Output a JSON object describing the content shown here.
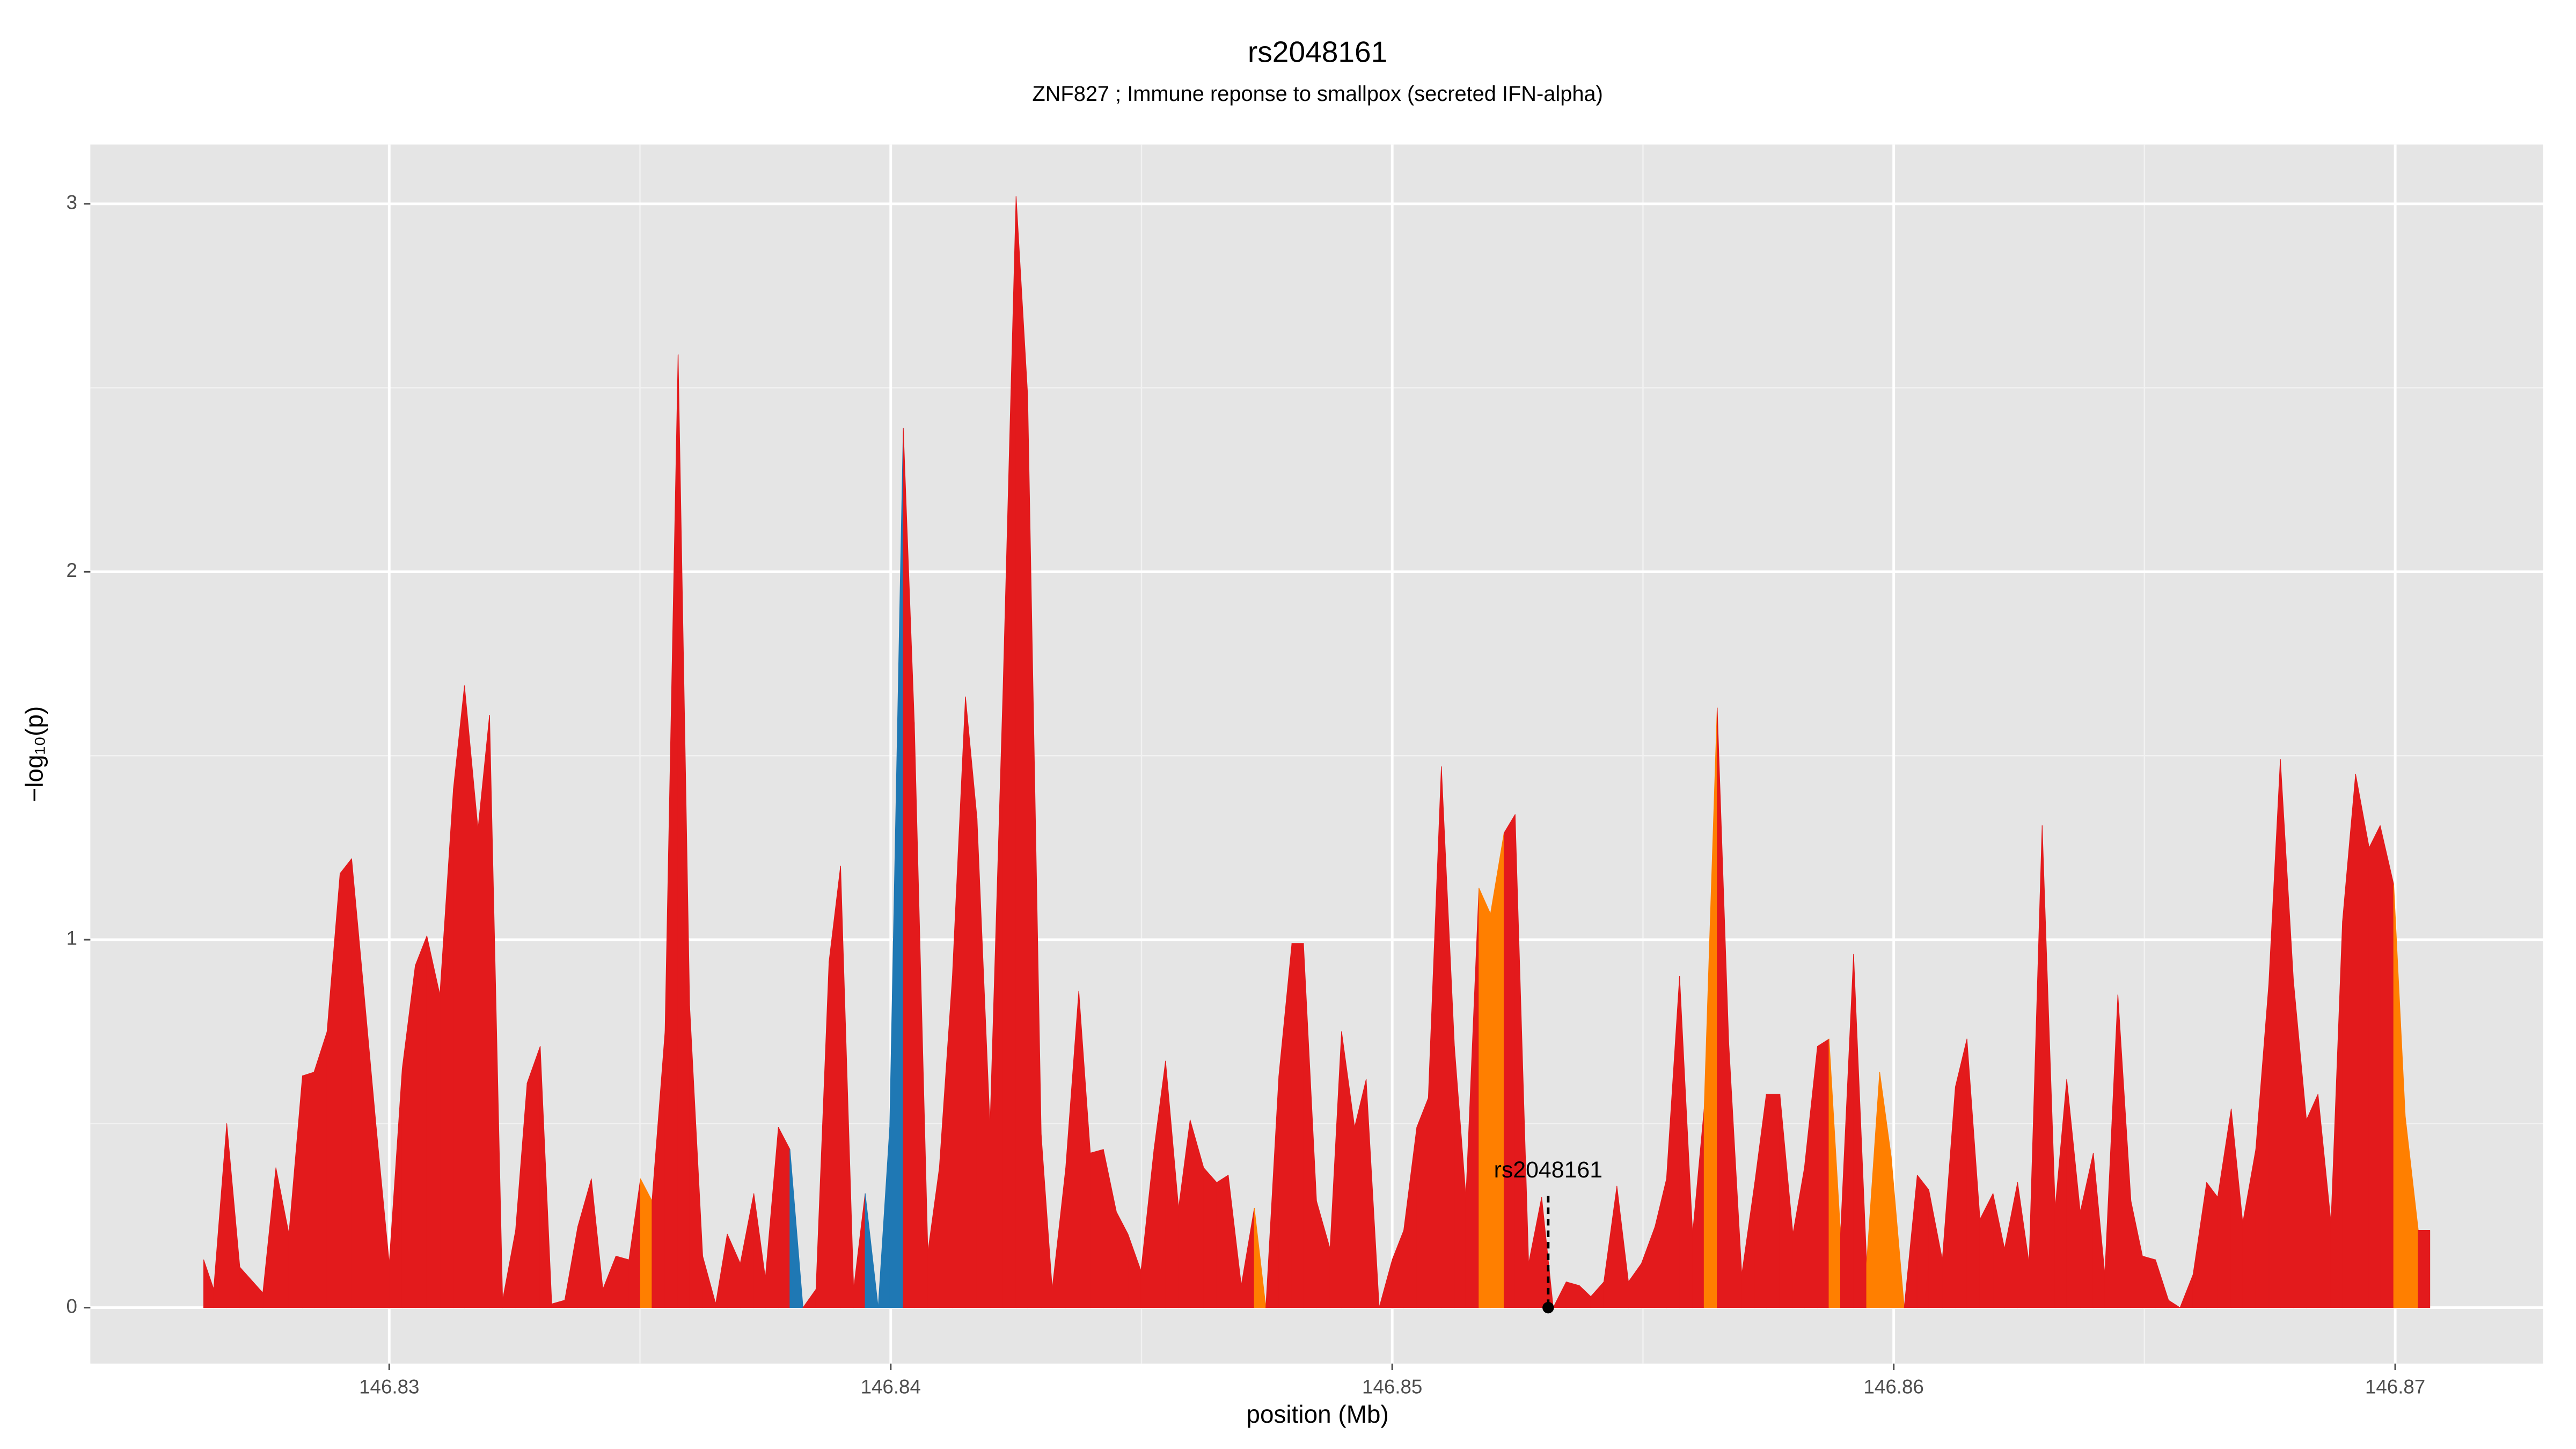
{
  "chart_data": {
    "type": "area",
    "title": "rs2048161",
    "subtitle": "ZNF827 ; Immune reponse to smallpox (secreted IFN-alpha)",
    "xlabel": "position (Mb)",
    "ylabel": "−log₁₀(p)",
    "xlim": [
      146.82404,
      146.87295
    ],
    "ylim": [
      -0.152,
      3.161
    ],
    "xticks": [
      146.83,
      146.84,
      146.85,
      146.86,
      146.87
    ],
    "yticks": [
      0,
      1,
      2,
      3
    ],
    "grid": true,
    "minor_grid": true,
    "annotation": {
      "text": "rs2048161",
      "x": 146.85311,
      "y": 0
    },
    "series": [
      {
        "x": [
          146.8263,
          146.8265,
          146.82676,
          146.82702,
          146.82748,
          146.82774,
          146.828,
          146.82827,
          146.8285,
          146.82876,
          146.82902,
          146.82925,
          146.82948,
          146.82974,
          146.83,
          146.83026,
          146.83052,
          146.83075,
          146.83101,
          146.83128,
          146.8315,
          146.83177,
          146.832,
          146.83226,
          146.83252,
          146.83275,
          146.83301,
          146.83324,
          146.8335,
          146.83376,
          146.83403,
          146.83426,
          146.83452,
          146.83478,
          146.83501,
          146.83524,
          146.8355,
          146.83576,
          146.83599,
          146.83625,
          146.83651,
          146.83674,
          146.837,
          146.83727,
          146.8375,
          146.83776,
          146.83799,
          146.83825,
          146.83851,
          146.83877,
          146.839,
          146.83926,
          146.83949,
          146.83975,
          146.83998,
          146.84025,
          146.84047,
          146.84074,
          146.84097,
          146.84123,
          146.84149,
          146.84172,
          146.84198,
          146.84224,
          146.8425,
          146.84273,
          146.843,
          146.84322,
          146.84349,
          146.84375,
          146.84398,
          146.84424,
          146.8445,
          146.84473,
          146.84499,
          146.84525,
          146.84548,
          146.84574,
          146.84597,
          146.84624,
          146.8465,
          146.84673,
          146.84699,
          146.84725,
          146.84748,
          146.84774,
          146.848,
          146.84823,
          146.84849,
          146.84876,
          146.84899,
          146.84925,
          146.84948,
          146.84974,
          146.85,
          146.85023,
          146.85049,
          146.85072,
          146.85098,
          146.85124,
          146.85147,
          146.85173,
          146.85196,
          146.85223,
          146.85245,
          146.85272,
          146.85298,
          146.85321,
          146.85347,
          146.85373,
          146.85396,
          146.85422,
          146.85448,
          146.85471,
          146.85497,
          146.85524,
          146.85547,
          146.85573,
          146.85599,
          146.85622,
          146.85648,
          146.85671,
          146.85697,
          146.85723,
          146.85746,
          146.85773,
          146.85799,
          146.85822,
          146.85848,
          146.85871,
          146.85894,
          146.8592,
          146.85946,
          146.85972,
          146.85995,
          146.86021,
          146.86047,
          146.8607,
          146.86097,
          146.86123,
          146.86146,
          146.86172,
          146.86198,
          146.86221,
          146.86247,
          146.8627,
          146.86296,
          146.86322,
          146.86345,
          146.86372,
          146.86398,
          146.86421,
          146.86447,
          146.86473,
          146.86496,
          146.86522,
          146.86548,
          146.86571,
          146.86597,
          146.86624,
          146.86646,
          146.86673,
          146.86696,
          146.86722,
          146.86748,
          146.86771,
          146.86797,
          146.86823,
          146.86846,
          146.86872,
          146.86895,
          146.86921,
          146.86948,
          146.8697,
          146.86997,
          146.8702,
          146.87046,
          146.87069
        ],
        "values": [
          0.13,
          0.05,
          0.5,
          0.11,
          0.04,
          0.38,
          0.2,
          0.63,
          0.64,
          0.75,
          1.18,
          1.22,
          0.88,
          0.49,
          0.12,
          0.65,
          0.93,
          1.01,
          0.85,
          1.41,
          1.69,
          1.3,
          1.61,
          0.02,
          0.21,
          0.61,
          0.71,
          0.01,
          0.02,
          0.22,
          0.35,
          0.05,
          0.14,
          0.13,
          0.35,
          0.29,
          0.75,
          2.59,
          0.82,
          0.14,
          0.01,
          0.2,
          0.12,
          0.31,
          0.08,
          0.49,
          0.43,
          0,
          0.05,
          0.94,
          1.2,
          0.05,
          0.31,
          0,
          0.49,
          2.39,
          1.59,
          0.15,
          0.38,
          0.9,
          1.66,
          1.33,
          0.49,
          1.68,
          3.02,
          2.48,
          0.47,
          0.05,
          0.38,
          0.86,
          0.42,
          0.43,
          0.26,
          0.2,
          0.1,
          0.43,
          0.67,
          0.27,
          0.51,
          0.38,
          0.34,
          0.36,
          0.06,
          0.27,
          0,
          0.63,
          0.99,
          0.99,
          0.29,
          0.16,
          0.75,
          0.49,
          0.62,
          0,
          0.13,
          0.21,
          0.49,
          0.57,
          1.47,
          0.71,
          0.3,
          1.14,
          1.07,
          1.29,
          1.34,
          0.12,
          0.3,
          0,
          0.07,
          0.06,
          0.03,
          0.07,
          0.33,
          0.07,
          0.12,
          0.22,
          0.35,
          0.9,
          0.2,
          0.54,
          1.63,
          0.72,
          0.09,
          0.34,
          0.58,
          0.58,
          0.2,
          0.38,
          0.71,
          0.73,
          0.2,
          0.96,
          0.12,
          0.64,
          0.41,
          0,
          0.36,
          0.32,
          0.13,
          0.6,
          0.73,
          0.24,
          0.31,
          0.16,
          0.34,
          0.12,
          1.31,
          0.27,
          0.62,
          0.26,
          0.42,
          0.09,
          0.85,
          0.29,
          0.14,
          0.13,
          0.02,
          0,
          0.09,
          0.34,
          0.3,
          0.54,
          0.23,
          0.43,
          0.88,
          1.49,
          0.89,
          0.51,
          0.58,
          0.23,
          1.05,
          1.45,
          1.25,
          1.31,
          1.15,
          0.52,
          0.21,
          0.21
        ],
        "colors": [
          "#e31a1c",
          "#e31a1c",
          "#e31a1c",
          "#e31a1c",
          "#e31a1c",
          "#e31a1c",
          "#e31a1c",
          "#e31a1c",
          "#e31a1c",
          "#e31a1c",
          "#e31a1c",
          "#e31a1c",
          "#e31a1c",
          "#e31a1c",
          "#e31a1c",
          "#e31a1c",
          "#e31a1c",
          "#e31a1c",
          "#e31a1c",
          "#e31a1c",
          "#e31a1c",
          "#e31a1c",
          "#e31a1c",
          "#e31a1c",
          "#e31a1c",
          "#e31a1c",
          "#e31a1c",
          "#e31a1c",
          "#e31a1c",
          "#e31a1c",
          "#e31a1c",
          "#e31a1c",
          "#e31a1c",
          "#e31a1c",
          "#ff7f00",
          "#e31a1c",
          "#e31a1c",
          "#e31a1c",
          "#e31a1c",
          "#e31a1c",
          "#e31a1c",
          "#e31a1c",
          "#e31a1c",
          "#e31a1c",
          "#e31a1c",
          "#e31a1c",
          "#1f78b4",
          "#e31a1c",
          "#e31a1c",
          "#e31a1c",
          "#e31a1c",
          "#e31a1c",
          "#1f78b4",
          "#1f78b4",
          "#1f78b4",
          "#e31a1c",
          "#e31a1c",
          "#e31a1c",
          "#e31a1c",
          "#e31a1c",
          "#e31a1c",
          "#e31a1c",
          "#e31a1c",
          "#e31a1c",
          "#e31a1c",
          "#e31a1c",
          "#e31a1c",
          "#e31a1c",
          "#e31a1c",
          "#e31a1c",
          "#e31a1c",
          "#e31a1c",
          "#e31a1c",
          "#e31a1c",
          "#e31a1c",
          "#e31a1c",
          "#e31a1c",
          "#e31a1c",
          "#e31a1c",
          "#e31a1c",
          "#e31a1c",
          "#e31a1c",
          "#e31a1c",
          "#ff7f00",
          "#e31a1c",
          "#e31a1c",
          "#e31a1c",
          "#e31a1c",
          "#e31a1c",
          "#e31a1c",
          "#e31a1c",
          "#e31a1c",
          "#e31a1c",
          "#e31a1c",
          "#e31a1c",
          "#e31a1c",
          "#e31a1c",
          "#e31a1c",
          "#e31a1c",
          "#e31a1c",
          "#e31a1c",
          "#ff7f00",
          "#ff7f00",
          "#e31a1c",
          "#e31a1c",
          "#e31a1c",
          "#e31a1c",
          "#e31a1c",
          "#e31a1c",
          "#e31a1c",
          "#e31a1c",
          "#e31a1c",
          "#e31a1c",
          "#e31a1c",
          "#e31a1c",
          "#e31a1c",
          "#e31a1c",
          "#e31a1c",
          "#e31a1c",
          "#ff7f00",
          "#e31a1c",
          "#e31a1c",
          "#e31a1c",
          "#e31a1c",
          "#e31a1c",
          "#e31a1c",
          "#e31a1c",
          "#e31a1c",
          "#e31a1c",
          "#ff7f00",
          "#e31a1c",
          "#e31a1c",
          "#ff7f00",
          "#ff7f00",
          "#ff7f00",
          "#e31a1c",
          "#e31a1c",
          "#e31a1c",
          "#e31a1c",
          "#e31a1c",
          "#e31a1c",
          "#e31a1c",
          "#e31a1c",
          "#e31a1c",
          "#e31a1c",
          "#e31a1c",
          "#e31a1c",
          "#e31a1c",
          "#e31a1c",
          "#e31a1c",
          "#e31a1c",
          "#e31a1c",
          "#e31a1c",
          "#e31a1c",
          "#e31a1c",
          "#e31a1c",
          "#e31a1c",
          "#e31a1c",
          "#e31a1c",
          "#e31a1c",
          "#e31a1c",
          "#e31a1c",
          "#e31a1c",
          "#e31a1c",
          "#e31a1c",
          "#e31a1c",
          "#e31a1c",
          "#e31a1c",
          "#e31a1c",
          "#e31a1c",
          "#e31a1c",
          "#e31a1c",
          "#e31a1c",
          "#e31a1c",
          "#ff7f00",
          "#ff7f00",
          "#e31a1c",
          "#e31a1c"
        ]
      }
    ]
  }
}
